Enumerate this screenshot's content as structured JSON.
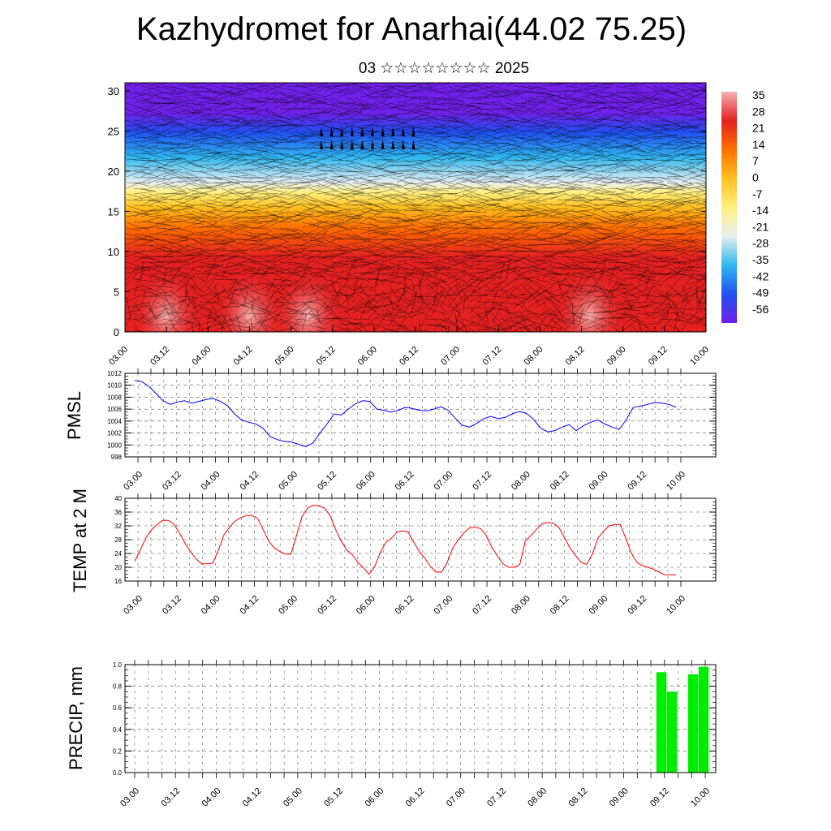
{
  "header": {
    "title": "Kazhydromet for Anarhai(44.02 75.25)",
    "subtitle": "03 ☆☆☆☆☆☆☆☆ 2025"
  },
  "time_labels": [
    "03.00",
    "03.12",
    "04.00",
    "04.12",
    "05.00",
    "05.12",
    "06.00",
    "06.12",
    "07.00",
    "07.12",
    "08.00",
    "08.12",
    "09.00",
    "09.12",
    "10.00"
  ],
  "chart_data": [
    {
      "type": "heatmap",
      "ylabel": "",
      "ylim": [
        0,
        31
      ],
      "yticks": [
        0,
        5,
        10,
        15,
        20,
        25,
        30
      ],
      "colorbar": {
        "labels": [
          "35",
          "28",
          "21",
          "14",
          "7",
          "0",
          "-7",
          "-14",
          "-21",
          "-28",
          "-35",
          "-42",
          "-49",
          "-56"
        ],
        "range": [
          -60,
          38
        ],
        "colors": [
          "#f4b0b0",
          "#e42020",
          "#ff7000",
          "#ffc020",
          "#fff080",
          "#e8eef0",
          "#30b8f0",
          "#2050f0",
          "#7020e8"
        ]
      },
      "overlay": "wind barbs",
      "grid": false
    },
    {
      "type": "line",
      "ylabel": "PMSL",
      "ylim": [
        998,
        1012
      ],
      "yticks": [
        998,
        1000,
        1002,
        1004,
        1006,
        1008,
        1010,
        1012
      ],
      "color": "#0000ff",
      "values": [
        1010.8,
        1010.6,
        1009.8,
        1008.6,
        1007.4,
        1006.8,
        1007.2,
        1007.4,
        1007.0,
        1007.3,
        1007.6,
        1007.8,
        1007.3,
        1006.6,
        1005.2,
        1004.2,
        1003.8,
        1003.5,
        1002.8,
        1001.4,
        1000.9,
        1000.6,
        1000.5,
        1000.1,
        999.7,
        1000.3,
        1002.0,
        1003.5,
        1005.2,
        1005.0,
        1006.0,
        1006.9,
        1007.4,
        1007.3,
        1006.0,
        1005.8,
        1005.5,
        1005.8,
        1006.3,
        1006.1,
        1005.8,
        1005.7,
        1006.0,
        1006.4,
        1005.8,
        1004.5,
        1003.3,
        1003.0,
        1003.6,
        1004.4,
        1004.8,
        1004.4,
        1004.6,
        1005.2,
        1005.6,
        1005.3,
        1004.3,
        1002.8,
        1002.2,
        1002.4,
        1003.0,
        1003.4,
        1002.4,
        1003.2,
        1003.8,
        1004.2,
        1003.5,
        1003.0,
        1002.6,
        1004.2,
        1006.3,
        1006.5,
        1006.8,
        1007.1,
        1007.0,
        1006.8,
        1006.3
      ]
    },
    {
      "type": "line",
      "ylabel": "TEMP at 2 M",
      "ylim": [
        16,
        40
      ],
      "yticks": [
        16,
        20,
        24,
        28,
        32,
        36,
        40
      ],
      "color": "#ff0000",
      "values": [
        21.8,
        25.0,
        28.6,
        30.8,
        32.4,
        33.6,
        33.6,
        32.6,
        30.0,
        27.0,
        24.6,
        22.4,
        21.0,
        21.0,
        21.2,
        25.0,
        29.4,
        31.6,
        33.4,
        34.4,
        35.0,
        35.0,
        34.2,
        31.0,
        27.6,
        25.6,
        24.6,
        23.8,
        23.8,
        29.2,
        34.8,
        37.2,
        38.0,
        37.8,
        37.2,
        35.0,
        31.0,
        27.6,
        25.0,
        23.6,
        21.4,
        19.8,
        18.0,
        20.2,
        24.2,
        27.2,
        28.4,
        30.2,
        30.6,
        30.2,
        27.2,
        24.6,
        22.6,
        20.2,
        18.6,
        18.6,
        21.4,
        25.6,
        28.0,
        30.0,
        31.4,
        31.6,
        31.2,
        29.2,
        25.8,
        23.2,
        21.0,
        20.0,
        20.0,
        20.8,
        27.6,
        29.2,
        31.0,
        32.6,
        33.0,
        32.8,
        31.6,
        28.6,
        25.6,
        23.4,
        21.4,
        20.8,
        23.8,
        28.4,
        30.4,
        32.0,
        32.4,
        32.4,
        28.4,
        24.0,
        21.4,
        20.4,
        20.0,
        19.4,
        18.6,
        17.8,
        17.8,
        17.8
      ]
    },
    {
      "type": "bar",
      "ylabel": "PRECIP, mm",
      "ylim": [
        0,
        1
      ],
      "yticks": [
        "0.0",
        "0.2",
        "0.4",
        "0.6",
        "0.8",
        "1.0"
      ],
      "color": "#00ee00",
      "bars": [
        {
          "x": "09.12",
          "offset": 0.0,
          "value": 0.93
        },
        {
          "x": "09.12",
          "offset": 1.0,
          "value": 0.75
        },
        {
          "x": "09.12",
          "offset": 3.0,
          "value": 0.91
        },
        {
          "x": "09.12",
          "offset": 4.0,
          "value": 0.98
        }
      ]
    }
  ]
}
